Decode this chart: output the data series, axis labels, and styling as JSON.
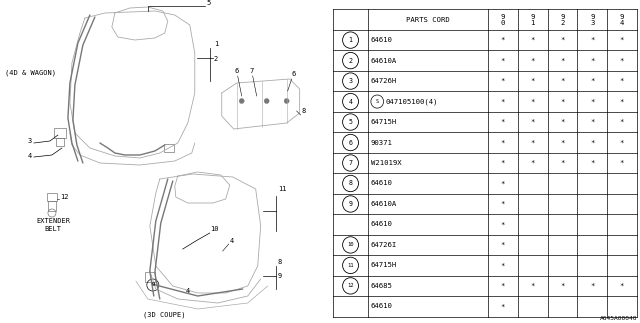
{
  "bg_color": "#ffffff",
  "footnote": "A645A00040",
  "header_cols": [
    "9\n0",
    "9\n1",
    "9\n2",
    "9\n3",
    "9\n4"
  ],
  "row_display": [
    {
      "num": "1",
      "part": "64610",
      "has_s": false,
      "cols": [
        true,
        true,
        true,
        true,
        true
      ],
      "show_circle": true
    },
    {
      "num": "2",
      "part": "64610A",
      "has_s": false,
      "cols": [
        true,
        true,
        true,
        true,
        true
      ],
      "show_circle": true
    },
    {
      "num": "3",
      "part": "64726H",
      "has_s": false,
      "cols": [
        true,
        true,
        true,
        true,
        true
      ],
      "show_circle": true
    },
    {
      "num": "4",
      "part": "047105100(4)",
      "has_s": true,
      "cols": [
        true,
        true,
        true,
        true,
        true
      ],
      "show_circle": true
    },
    {
      "num": "5",
      "part": "64715H",
      "has_s": false,
      "cols": [
        true,
        true,
        true,
        true,
        true
      ],
      "show_circle": true
    },
    {
      "num": "6",
      "part": "90371",
      "has_s": false,
      "cols": [
        true,
        true,
        true,
        true,
        true
      ],
      "show_circle": true
    },
    {
      "num": "7",
      "part": "W21019X",
      "has_s": false,
      "cols": [
        true,
        true,
        true,
        true,
        true
      ],
      "show_circle": true
    },
    {
      "num": "8",
      "part": "64610",
      "has_s": false,
      "cols": [
        true,
        false,
        false,
        false,
        false
      ],
      "show_circle": true
    },
    {
      "num": "9",
      "part": "64610A",
      "has_s": false,
      "cols": [
        true,
        false,
        false,
        false,
        false
      ],
      "show_circle": true
    },
    {
      "num": "9",
      "part": "64610",
      "has_s": false,
      "cols": [
        true,
        false,
        false,
        false,
        false
      ],
      "show_circle": false
    },
    {
      "num": "10",
      "part": "64726I",
      "has_s": false,
      "cols": [
        true,
        false,
        false,
        false,
        false
      ],
      "show_circle": true
    },
    {
      "num": "11",
      "part": "64715H",
      "has_s": false,
      "cols": [
        true,
        false,
        false,
        false,
        false
      ],
      "show_circle": true
    },
    {
      "num": "12",
      "part": "64685",
      "has_s": false,
      "cols": [
        true,
        true,
        true,
        true,
        true
      ],
      "show_circle": true
    },
    {
      "num": "12",
      "part": "64610",
      "has_s": false,
      "cols": [
        true,
        false,
        false,
        false,
        false
      ],
      "show_circle": false
    }
  ]
}
